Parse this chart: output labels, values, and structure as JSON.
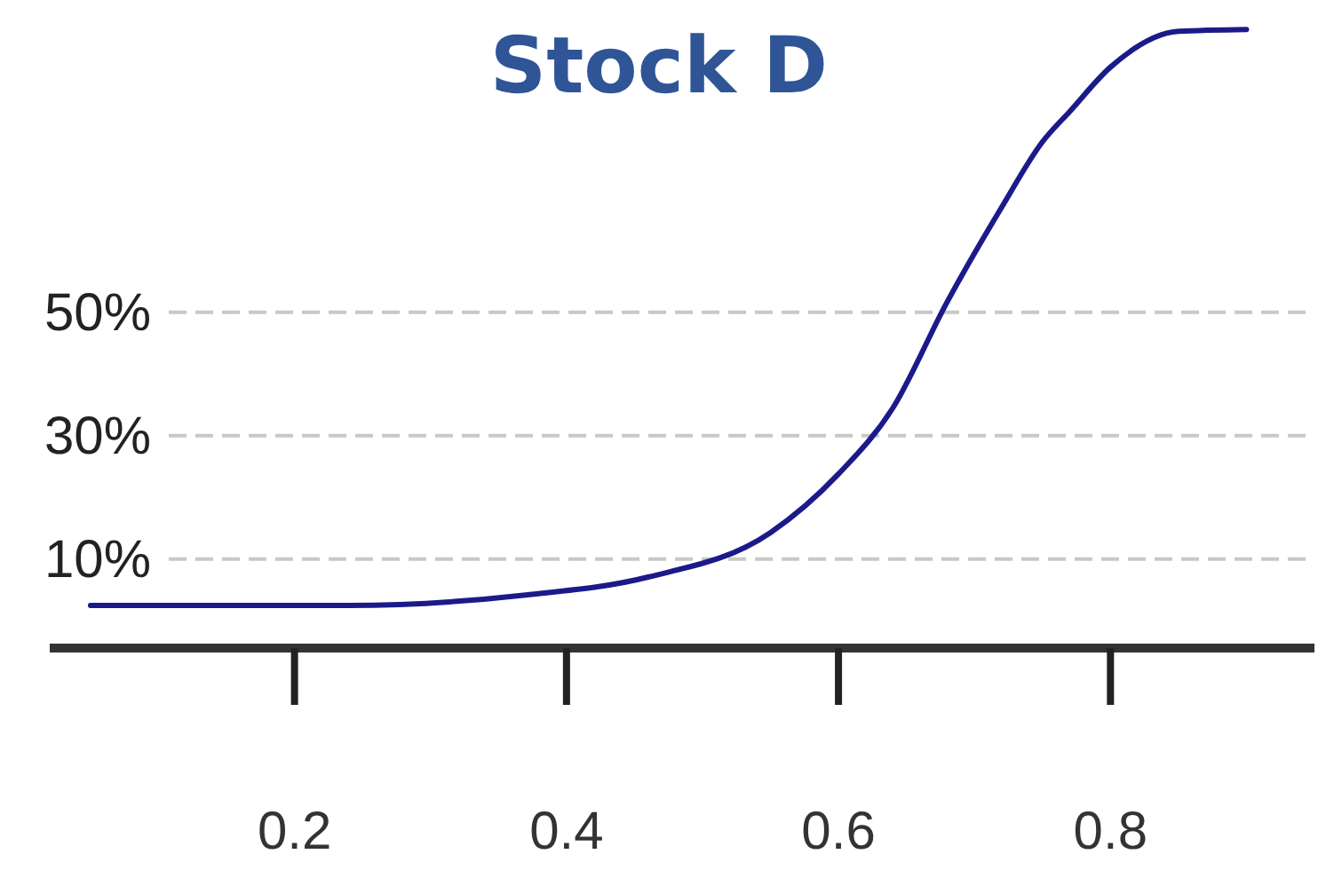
{
  "chart_data": {
    "type": "line",
    "title": "Stock D",
    "xlim": [
      0.02,
      0.95
    ],
    "xticks": [
      0.2,
      0.4,
      0.6,
      0.8
    ],
    "ylim": [
      -4.4,
      100
    ],
    "yticks": [
      {
        "value": 10,
        "label": "10%"
      },
      {
        "value": 30,
        "label": "30%"
      },
      {
        "value": 50,
        "label": "50%"
      }
    ],
    "grid": "y",
    "series": [
      {
        "color": "#1c1a8a",
        "x": [
          0.05,
          0.24,
          0.37,
          0.46,
          0.55,
          0.6,
          0.64,
          0.68,
          0.72,
          0.75,
          0.77,
          0.8,
          0.85,
          0.9
        ],
        "values": [
          2.5,
          2.5,
          4.2,
          7.1,
          14.3,
          23.8,
          34.5,
          51.7,
          67.0,
          77.6,
          82.5,
          89.7,
          95.5,
          95.8
        ]
      }
    ]
  }
}
